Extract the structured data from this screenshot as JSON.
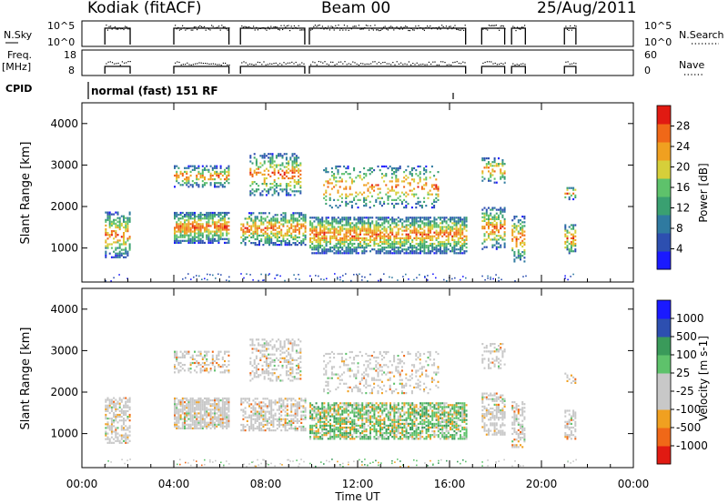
{
  "header": {
    "station": "Kodiak (fitACF)",
    "beam": "Beam 00",
    "date": "25/Aug/2011"
  },
  "side_labels": {
    "nsky": "N.Sky",
    "freq_line1": "Freq.",
    "freq_line2": "[MHz]",
    "cpid": "CPID",
    "nsearch": "N.Search",
    "nave": "Nave"
  },
  "nsky_panel": {
    "left_ticks": [
      "10^5",
      "10^0"
    ],
    "right_ticks": [
      "10^5",
      "10^0"
    ]
  },
  "freq_panel": {
    "left_ticks": [
      "18",
      "8"
    ],
    "right_ticks": [
      "60",
      "0"
    ]
  },
  "cpid_panel": {
    "label": "normal (fast) 151 RF"
  },
  "colors": {
    "power_scale": [
      "#1a1aff",
      "#2d4fb0",
      "#2f7aa0",
      "#3aa071",
      "#5ec26b",
      "#d6cf3a",
      "#f0a020",
      "#f06818",
      "#e11a12"
    ],
    "velocity_scale": [
      "#e11a12",
      "#f06818",
      "#f0a020",
      "#c8c8c8",
      "#c8c8c8",
      "#5ec26b",
      "#3a9a5a",
      "#2d4fb0",
      "#1a1aff"
    ]
  },
  "chart_data": [
    {
      "type": "heatmap",
      "title": "",
      "xlabel": "",
      "ylabel": "Slant Range [km]",
      "x_ticks": [
        "00:00",
        "04:00",
        "08:00",
        "12:00",
        "16:00",
        "20:00",
        "00:00"
      ],
      "y_ticks": [
        "1000",
        "2000",
        "3000",
        "4000"
      ],
      "xlim": [
        0,
        24
      ],
      "ylim": [
        180,
        4500
      ],
      "colorbar": {
        "label": "Power [dB]",
        "ticks": [
          "4",
          "8",
          "12",
          "16",
          "20",
          "24",
          "28"
        ],
        "range": [
          0,
          30
        ]
      },
      "data_segments_ut_hours": [
        [
          1.0,
          2.1
        ],
        [
          4.0,
          6.4
        ],
        [
          6.9,
          9.7
        ],
        [
          9.9,
          16.7
        ],
        [
          17.4,
          18.4
        ],
        [
          18.7,
          19.3
        ],
        [
          21.0,
          21.5
        ]
      ]
    },
    {
      "type": "heatmap",
      "title": "",
      "xlabel": "Time UT",
      "ylabel": "Slant Range [km]",
      "x_ticks": [
        "00:00",
        "04:00",
        "08:00",
        "12:00",
        "16:00",
        "20:00",
        "00:00"
      ],
      "y_ticks": [
        "1000",
        "2000",
        "3000",
        "4000"
      ],
      "xlim": [
        0,
        24
      ],
      "ylim": [
        180,
        4500
      ],
      "colorbar": {
        "label": "Velocity [m s-1]",
        "ticks": [
          "-1000",
          "-500",
          "-100",
          "-25",
          "25",
          "100",
          "500",
          "1000"
        ],
        "range": [
          -1200,
          1200
        ]
      },
      "data_segments_ut_hours": [
        [
          1.0,
          2.1
        ],
        [
          4.0,
          6.4
        ],
        [
          6.9,
          9.7
        ],
        [
          9.9,
          16.7
        ],
        [
          17.4,
          18.4
        ],
        [
          18.7,
          19.3
        ],
        [
          21.0,
          21.5
        ]
      ]
    }
  ]
}
